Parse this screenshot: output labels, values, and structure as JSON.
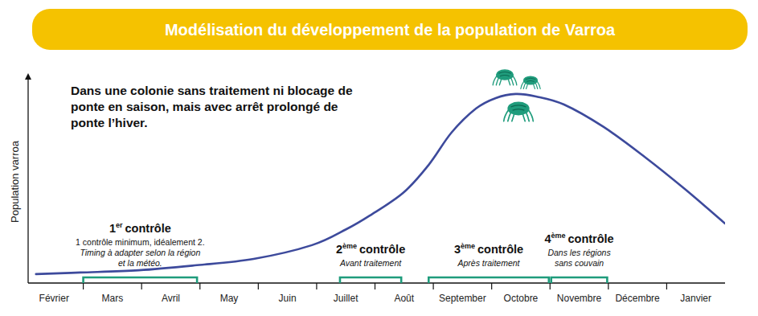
{
  "chart_data": {
    "type": "line",
    "title": "Modélisation du développement de la population de Varroa",
    "subtitle": "Dans une colonie sans traitement ni blocage de ponte en saison, mais avec arrêt prolongé de ponte l’hiver.",
    "y_label": "Population varroa",
    "categories": [
      "Février",
      "Mars",
      "Avril",
      "May",
      "Juin",
      "Juillet",
      "Août",
      "September",
      "Octobre",
      "Novembre",
      "Décembre",
      "Janvier"
    ],
    "xlim": [
      0,
      12
    ],
    "ylim": [
      0,
      100
    ],
    "tick_labels": "x",
    "grid": false,
    "series": [
      {
        "color": "#3d4a9c",
        "x": [
          0.19,
          0.95,
          1.95,
          2.91,
          3.92,
          4.92,
          5.51,
          5.91,
          6.48,
          6.92,
          7.31,
          7.73,
          8.07,
          8.41,
          8.76,
          9.24,
          9.92,
          10.62,
          11.31,
          12
        ],
        "values": [
          4.4,
          5.2,
          6.3,
          8.7,
          11.9,
          18.7,
          26.6,
          33.3,
          44.4,
          58.3,
          74.2,
          86.1,
          91.3,
          93.3,
          92.1,
          88.1,
          77.0,
          62.3,
          46.4,
          29.4
        ]
      }
    ],
    "annotations": [
      {
        "ordinal": "1",
        "ordinal_suffix": "er",
        "label": "contrôle",
        "start": 1,
        "end": 2.95,
        "notes": [
          "1 contrôle minimum, idéalement 2."
        ],
        "italic_notes": [
          "Timing à adapter selon la région",
          "et la météo."
        ]
      },
      {
        "ordinal": "2",
        "ordinal_suffix": "ème",
        "label": "contrôle",
        "start": 5.4,
        "end": 6.45,
        "italic_notes": [
          "Avant traitement"
        ]
      },
      {
        "ordinal": "3",
        "ordinal_suffix": "ème",
        "label": "contrôle",
        "start": 6.92,
        "end": 8.98,
        "italic_notes": [
          "Après traitement"
        ]
      },
      {
        "ordinal": "4",
        "ordinal_suffix": "ème",
        "label": "contrôle",
        "start": 9.02,
        "end": 9.98,
        "italic_notes": [
          "Dans les régions",
          "sans couvain"
        ]
      }
    ]
  }
}
